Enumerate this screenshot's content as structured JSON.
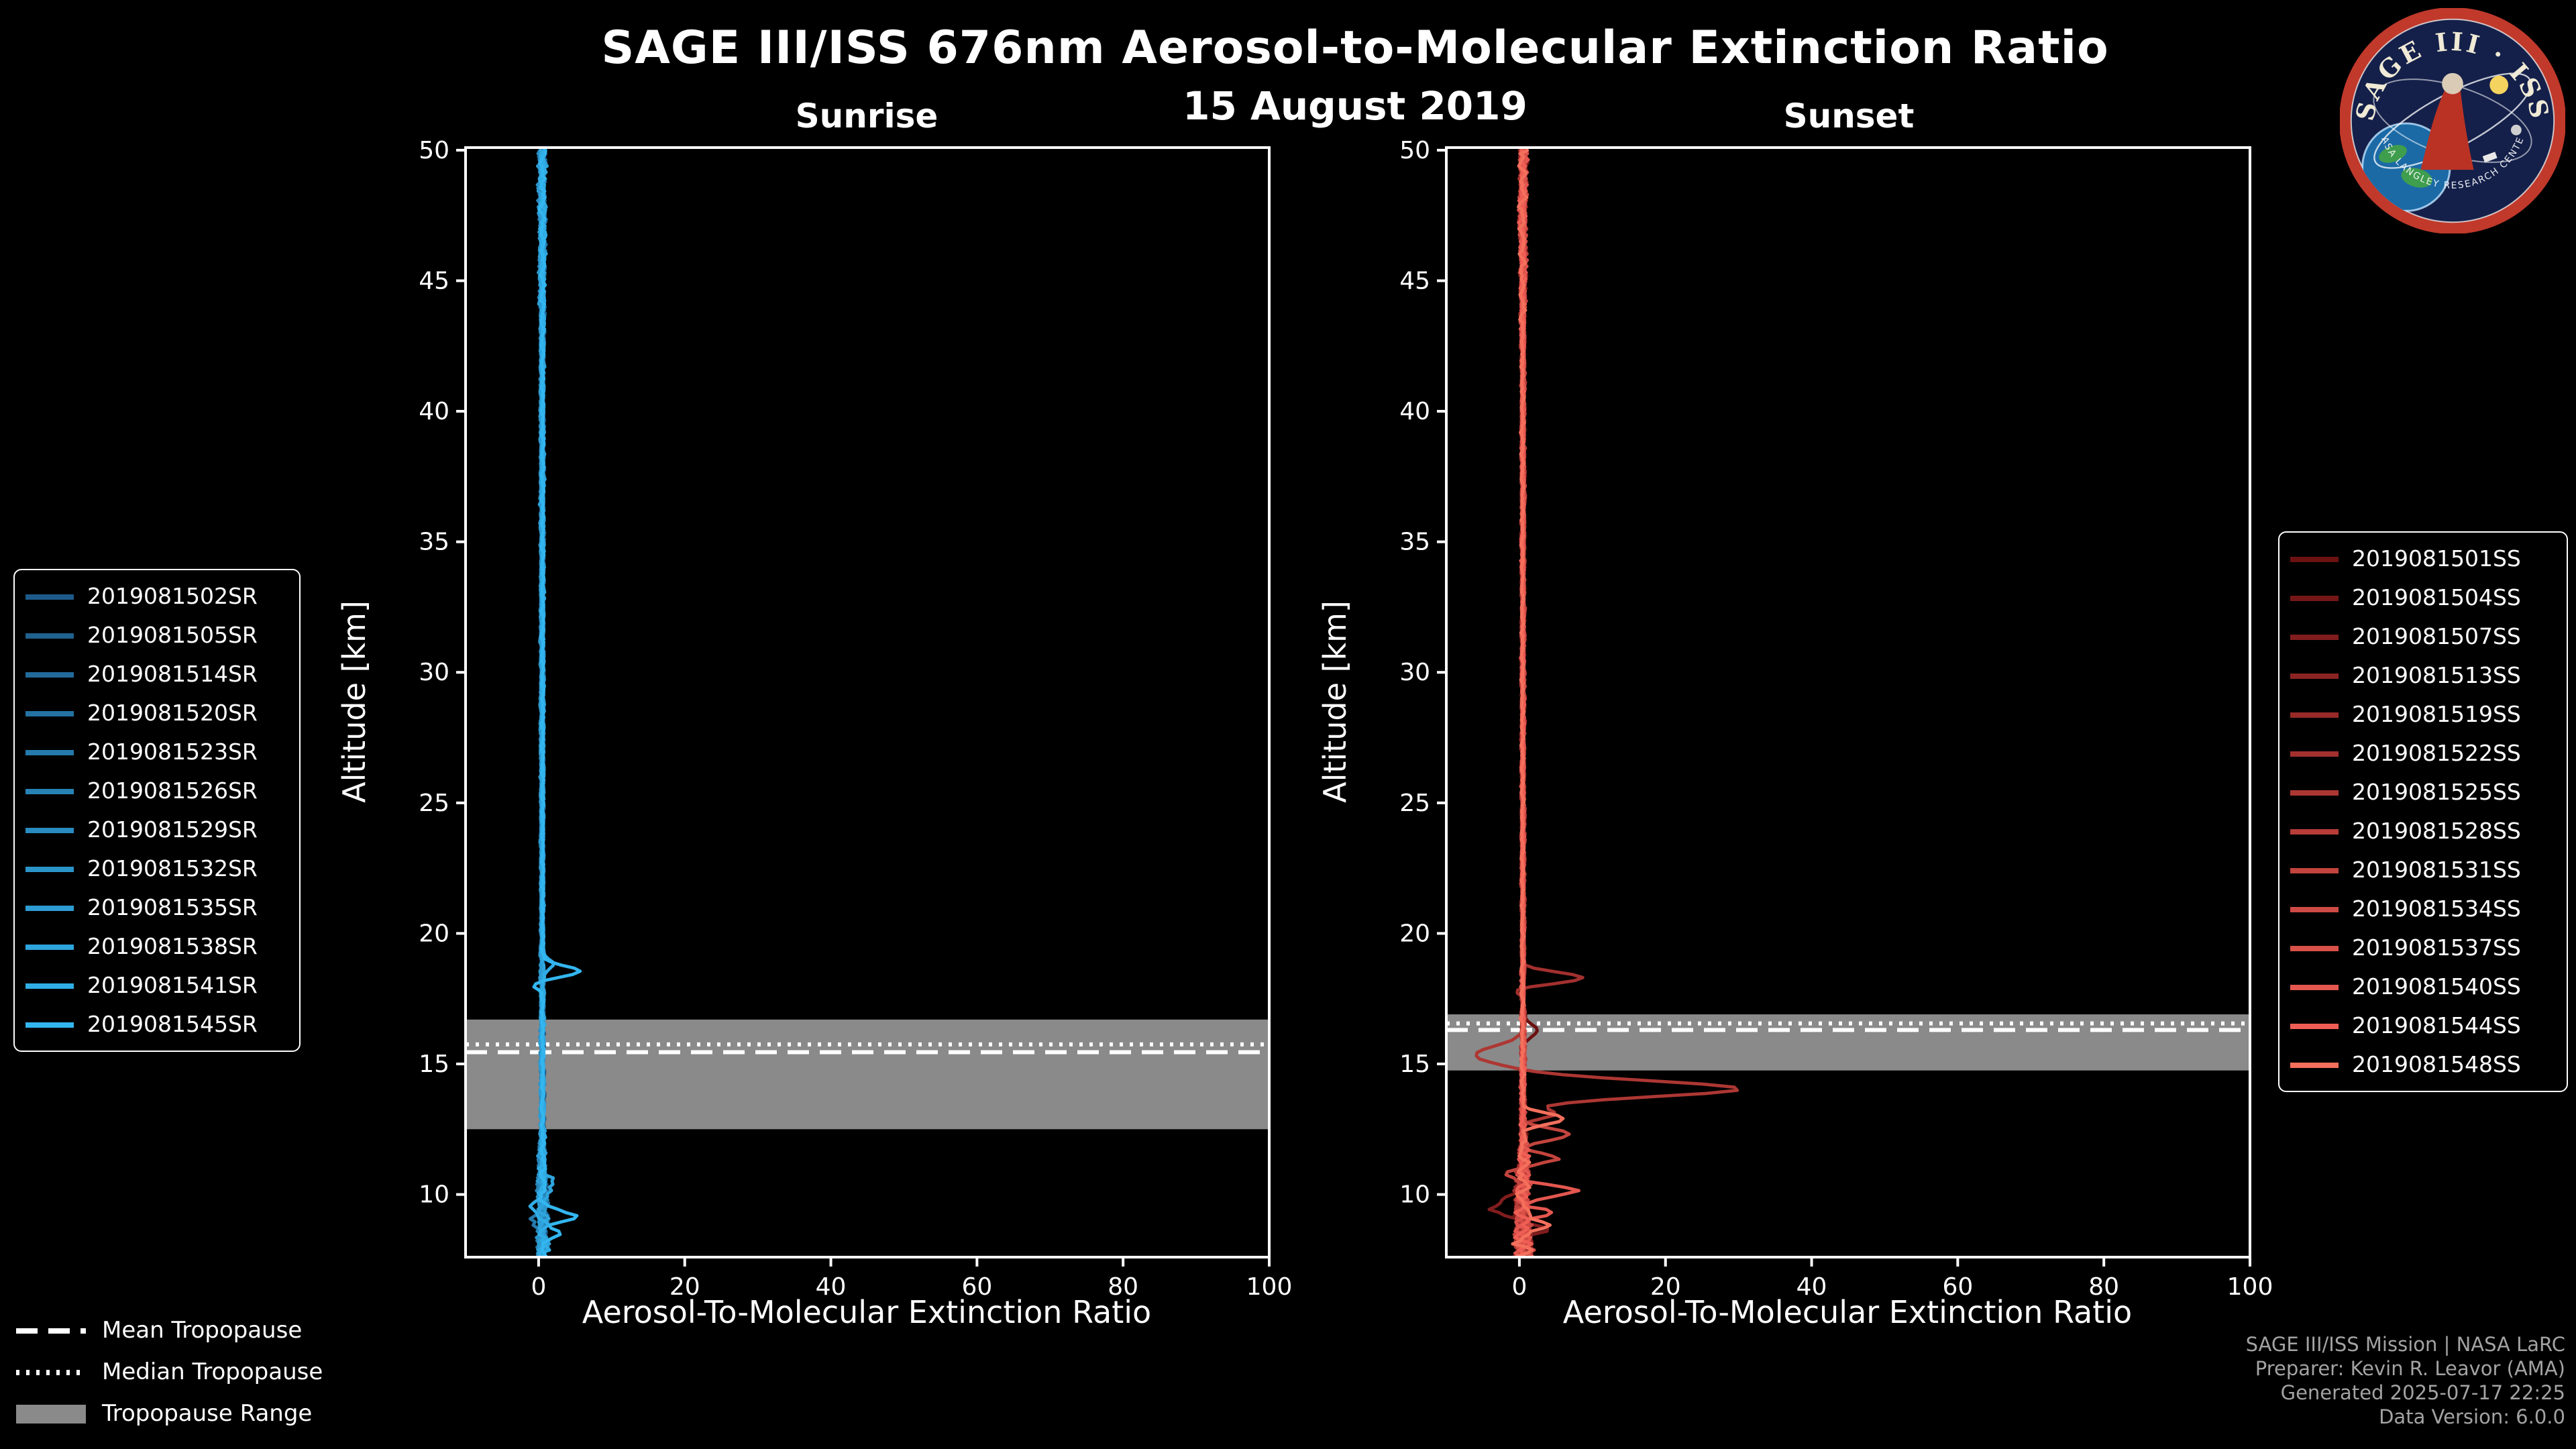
{
  "page": {
    "title": "SAGE III/ISS 676nm Aerosol-to-Molecular Extinction Ratio",
    "date": "15 August 2019"
  },
  "logo": {
    "title_arc": "SAGE III · ISS",
    "bottom_arc": "NASA LANGLEY RESEARCH CENTER"
  },
  "tropopause_legend": {
    "mean": "Mean Tropopause",
    "median": "Median Tropopause",
    "range": "Tropopause Range"
  },
  "footer": {
    "line1": "SAGE III/ISS Mission | NASA LaRC",
    "line2": "Preparer: Kevin R. Leavor (AMA)",
    "line3": "Generated 2025-07-17 22:25",
    "line4": "Data Version: 6.0.0"
  },
  "chart_data": {
    "type": "line",
    "title": "SAGE III/ISS 676nm Aerosol-to-Molecular Extinction Ratio",
    "subtitle": "15 August 2019",
    "xlabel": "Aerosol-To-Molecular Extinction Ratio",
    "ylabel": "Altitude [km]",
    "xlim": [
      -10,
      100
    ],
    "ylim": [
      7.6,
      50.1
    ],
    "xticks": [
      0,
      20,
      40,
      60,
      80,
      100
    ],
    "yticks": [
      10,
      15,
      20,
      25,
      30,
      35,
      40,
      45,
      50
    ],
    "grid": false,
    "band_color": "#8a8a8a",
    "panels": [
      {
        "key": "sunrise",
        "title": "Sunrise",
        "base": 0.5,
        "tropopause": {
          "mean": 15.45,
          "median": 15.75,
          "range": [
            12.5,
            16.7
          ]
        },
        "noise_amp": [
          [
            7.6,
            1.1
          ],
          [
            10.5,
            0.9
          ],
          [
            12.5,
            0.35
          ],
          [
            20,
            0.22
          ],
          [
            42,
            0.28
          ],
          [
            46,
            0.55
          ],
          [
            50.1,
            0.7
          ]
        ],
        "series": [
          {
            "name": "2019081502SR",
            "color": "#1d5a8a",
            "seed": 1,
            "anomalies": []
          },
          {
            "name": "2019081505SR",
            "color": "#1f628f",
            "seed": 2,
            "anomalies": []
          },
          {
            "name": "2019081514SR",
            "color": "#216a99",
            "seed": 3,
            "anomalies": []
          },
          {
            "name": "2019081520SR",
            "color": "#2372a3",
            "seed": 4,
            "anomalies": []
          },
          {
            "name": "2019081523SR",
            "color": "#257aac",
            "seed": 5,
            "anomalies": [
              {
                "alt": 9.0,
                "peak": -1.2,
                "width": 0.3
              }
            ]
          },
          {
            "name": "2019081526SR",
            "color": "#2783b6",
            "seed": 6,
            "anomalies": []
          },
          {
            "name": "2019081529SR",
            "color": "#298bc0",
            "seed": 7,
            "anomalies": []
          },
          {
            "name": "2019081532SR",
            "color": "#2b94c9",
            "seed": 8,
            "anomalies": []
          },
          {
            "name": "2019081535SR",
            "color": "#2d9cd3",
            "seed": 9,
            "anomalies": []
          },
          {
            "name": "2019081538SR",
            "color": "#2fa5dd",
            "seed": 10,
            "anomalies": [
              {
                "alt": 10.4,
                "peak": 1.5,
                "width": 0.3
              }
            ]
          },
          {
            "name": "2019081541SR",
            "color": "#31ade6",
            "seed": 11,
            "anomalies": [
              {
                "alt": 18.8,
                "peak": 1.6,
                "width": 0.25
              },
              {
                "alt": 9.6,
                "peak": -1.8,
                "width": 0.3
              }
            ]
          },
          {
            "name": "2019081545SR",
            "color": "#33b6f0",
            "seed": 12,
            "anomalies": [
              {
                "alt": 18.55,
                "peak": 5.2,
                "width": 0.28
              },
              {
                "alt": 18.05,
                "peak": -1.4,
                "width": 0.22
              },
              {
                "alt": 9.15,
                "peak": 4.8,
                "width": 0.26
              },
              {
                "alt": 8.45,
                "peak": 2.2,
                "width": 0.22
              }
            ]
          }
        ]
      },
      {
        "key": "sunset",
        "title": "Sunset",
        "base": 0.5,
        "tropopause": {
          "mean": 16.3,
          "median": 16.55,
          "range": [
            14.75,
            16.9
          ]
        },
        "noise_amp": [
          [
            7.6,
            1.9
          ],
          [
            10.5,
            1.4
          ],
          [
            12.5,
            0.5
          ],
          [
            14,
            0.45
          ],
          [
            17,
            0.3
          ],
          [
            20,
            0.25
          ],
          [
            42,
            0.3
          ],
          [
            46,
            0.6
          ],
          [
            50.1,
            0.8
          ]
        ],
        "series": [
          {
            "name": "2019081501SS",
            "color": "#6b1111",
            "seed": 21,
            "anomalies": [
              {
                "alt": 16.3,
                "peak": 2.0,
                "width": 0.3
              }
            ]
          },
          {
            "name": "2019081504SS",
            "color": "#761717",
            "seed": 22,
            "anomalies": []
          },
          {
            "name": "2019081507SS",
            "color": "#811d1d",
            "seed": 23,
            "anomalies": [
              {
                "alt": 9.5,
                "peak": -4.5,
                "width": 0.35
              },
              {
                "alt": 8.6,
                "peak": 2.5,
                "width": 0.3
              }
            ]
          },
          {
            "name": "2019081513SS",
            "color": "#8c2323",
            "seed": 24,
            "anomalies": []
          },
          {
            "name": "2019081519SS",
            "color": "#972a28",
            "seed": 25,
            "anomalies": []
          },
          {
            "name": "2019081522SS",
            "color": "#a2302e",
            "seed": 26,
            "anomalies": [
              {
                "alt": 18.3,
                "peak": 8.2,
                "width": 0.3
              },
              {
                "alt": 17.85,
                "peak": -1.2,
                "width": 0.2
              }
            ]
          },
          {
            "name": "2019081525SS",
            "color": "#ad3733",
            "seed": 27,
            "anomalies": [
              {
                "alt": 14.05,
                "peak": 30,
                "width": 0.42
              },
              {
                "alt": 15.35,
                "peak": -6.5,
                "width": 0.45
              },
              {
                "alt": 13.1,
                "peak": 4.5,
                "width": 0.25
              }
            ]
          },
          {
            "name": "2019081528SS",
            "color": "#b83d39",
            "seed": 28,
            "anomalies": []
          },
          {
            "name": "2019081531SS",
            "color": "#c3443e",
            "seed": 29,
            "anomalies": [
              {
                "alt": 12.3,
                "peak": 6.2,
                "width": 0.3
              },
              {
                "alt": 11.35,
                "peak": 4.6,
                "width": 0.25
              },
              {
                "alt": 10.75,
                "peak": -2.8,
                "width": 0.25
              }
            ]
          },
          {
            "name": "2019081534SS",
            "color": "#ce4a44",
            "seed": 30,
            "anomalies": []
          },
          {
            "name": "2019081537SS",
            "color": "#d95149",
            "seed": 31,
            "anomalies": []
          },
          {
            "name": "2019081540SS",
            "color": "#e4574f",
            "seed": 32,
            "anomalies": [
              {
                "alt": 10.15,
                "peak": 7.2,
                "width": 0.28
              },
              {
                "alt": 9.35,
                "peak": 3.8,
                "width": 0.22
              }
            ]
          },
          {
            "name": "2019081544SS",
            "color": "#ef5e54",
            "seed": 33,
            "anomalies": []
          },
          {
            "name": "2019081548SS",
            "color": "#f4705c",
            "seed": 34,
            "anomalies": [
              {
                "alt": 12.9,
                "peak": 5.5,
                "width": 0.3
              },
              {
                "alt": 8.9,
                "peak": 3.2,
                "width": 0.3
              }
            ]
          }
        ]
      }
    ]
  }
}
